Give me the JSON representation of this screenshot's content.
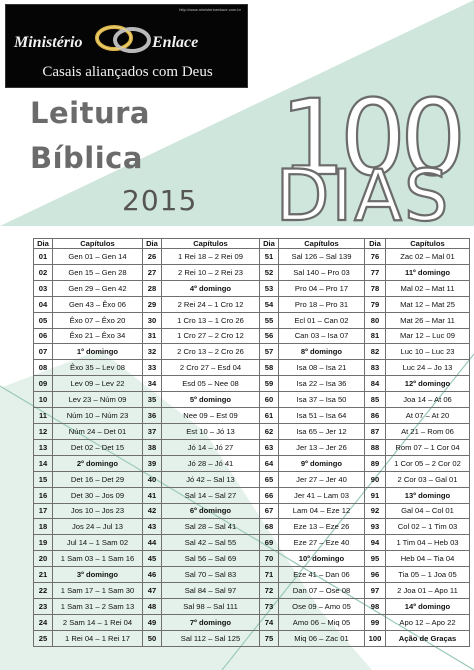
{
  "logo": {
    "url": "http://www.ministerioenlace.com.br",
    "word1": "Ministério",
    "word2": "Enlace",
    "subtitle": "Casais aliançados com Deus"
  },
  "header": {
    "line1": "Leitura",
    "line2": "Bíblica",
    "year": "2015",
    "big_number": "100",
    "big_word": "DIAS"
  },
  "colors": {
    "teal": "#cfe6dc",
    "teal_line": "#7fbfa7",
    "title_gray": "#6b6b6b"
  },
  "table": {
    "headers": [
      "Dia",
      "Capítulos",
      "Dia",
      "Capítulos",
      "Dia",
      "Capítulos",
      "Dia",
      "Capítulos"
    ],
    "rows": [
      [
        [
          "01",
          "Gen 01 – Gen 14"
        ],
        [
          "26",
          "1 Rei 18 – 2 Rei 09"
        ],
        [
          "51",
          "Sal 126 – Sal 139"
        ],
        [
          "76",
          "Zac 02 – Mal 01"
        ]
      ],
      [
        [
          "02",
          "Gen 15 – Gen 28"
        ],
        [
          "27",
          "2 Rei 10 – 2 Rei 23"
        ],
        [
          "52",
          "Sal 140 – Pro 03"
        ],
        [
          "77",
          "11º domingo"
        ]
      ],
      [
        [
          "03",
          "Gen 29 – Gen 42"
        ],
        [
          "28",
          "4º domingo"
        ],
        [
          "53",
          "Pro 04 – Pro 17"
        ],
        [
          "78",
          "Mal 02 – Mat 11"
        ]
      ],
      [
        [
          "04",
          "Gen 43 – Êxo 06"
        ],
        [
          "29",
          "2 Rei 24 – 1 Cro 12"
        ],
        [
          "54",
          "Pro 18 – Pro 31"
        ],
        [
          "79",
          "Mat 12 – Mat 25"
        ]
      ],
      [
        [
          "05",
          "Êxo 07 – Êxo 20"
        ],
        [
          "30",
          "1 Cro 13 – 1 Cro 26"
        ],
        [
          "55",
          "Ecl 01 – Can 02"
        ],
        [
          "80",
          "Mat 26 – Mar 11"
        ]
      ],
      [
        [
          "06",
          "Êxo 21 – Êxo 34"
        ],
        [
          "31",
          "1 Cro 27 – 2 Cro 12"
        ],
        [
          "56",
          "Can 03 – Isa 07"
        ],
        [
          "81",
          "Mar 12 – Luc 09"
        ]
      ],
      [
        [
          "07",
          "1º domingo"
        ],
        [
          "32",
          "2 Cro 13 – 2 Cro 26"
        ],
        [
          "57",
          "8º domingo"
        ],
        [
          "82",
          "Luc 10 – Luc 23"
        ]
      ],
      [
        [
          "08",
          "Êxo 35 – Lev 08"
        ],
        [
          "33",
          "2 Cro 27 – Esd 04"
        ],
        [
          "58",
          "Isa 08 – Isa 21"
        ],
        [
          "83",
          "Luc 24 – Jo 13"
        ]
      ],
      [
        [
          "09",
          "Lev 09 – Lev 22"
        ],
        [
          "34",
          "Esd 05 – Nee 08"
        ],
        [
          "59",
          "Isa 22 – Isa 36"
        ],
        [
          "84",
          "12º domingo"
        ]
      ],
      [
        [
          "10",
          "Lev 23 – Núm 09"
        ],
        [
          "35",
          "5º domingo"
        ],
        [
          "60",
          "Isa 37 – Isa 50"
        ],
        [
          "85",
          "Joa 14 – At 06"
        ]
      ],
      [
        [
          "11",
          "Núm 10 – Núm 23"
        ],
        [
          "36",
          "Nee 09 – Est 09"
        ],
        [
          "61",
          "Isa 51 – Isa 64"
        ],
        [
          "86",
          "At 07 – At 20"
        ]
      ],
      [
        [
          "12",
          "Núm 24 – Det 01"
        ],
        [
          "37",
          "Est 10 – Jó 13"
        ],
        [
          "62",
          "Isa 65 – Jer 12"
        ],
        [
          "87",
          "At 21 – Rom 06"
        ]
      ],
      [
        [
          "13",
          "Det 02 – Det 15"
        ],
        [
          "38",
          "Jó 14 – Jó 27"
        ],
        [
          "63",
          "Jer 13 – Jer 26"
        ],
        [
          "88",
          "Rom 07 – 1 Cor 04"
        ]
      ],
      [
        [
          "14",
          "2º domingo"
        ],
        [
          "39",
          "Jó 28 – Jó 41"
        ],
        [
          "64",
          "9º domingo"
        ],
        [
          "89",
          "1 Cor 05 – 2 Cor 02"
        ]
      ],
      [
        [
          "15",
          "Det 16 – Det 29"
        ],
        [
          "40",
          "Jó 42 – Sal 13"
        ],
        [
          "65",
          "Jer 27 – Jer 40"
        ],
        [
          "90",
          "2 Cor 03 – Gal 01"
        ]
      ],
      [
        [
          "16",
          "Det 30 – Jos 09"
        ],
        [
          "41",
          "Sal 14 – Sal 27"
        ],
        [
          "66",
          "Jer 41 – Lam 03"
        ],
        [
          "91",
          "13º domingo"
        ]
      ],
      [
        [
          "17",
          "Jos 10 – Jos 23"
        ],
        [
          "42",
          "6º domingo"
        ],
        [
          "67",
          "Lam 04 – Eze 12"
        ],
        [
          "92",
          "Gal 04 – Col 01"
        ]
      ],
      [
        [
          "18",
          "Jos 24 – Jul 13"
        ],
        [
          "43",
          "Sal 28 – Sal 41"
        ],
        [
          "68",
          "Eze 13 – Eze 26"
        ],
        [
          "93",
          "Col 02 – 1 Tim 03"
        ]
      ],
      [
        [
          "19",
          "Jul 14 – 1 Sam 02"
        ],
        [
          "44",
          "Sal 42 – Sal 55"
        ],
        [
          "69",
          "Eze 27 – Eze 40"
        ],
        [
          "94",
          "1 Tim 04 – Heb 03"
        ]
      ],
      [
        [
          "20",
          "1 Sam 03 – 1 Sam 16"
        ],
        [
          "45",
          "Sal 56 – Sal 69"
        ],
        [
          "70",
          "10º domingo"
        ],
        [
          "95",
          "Heb 04 – Tia 04"
        ]
      ],
      [
        [
          "21",
          "3º domingo"
        ],
        [
          "46",
          "Sal 70 – Sal 83"
        ],
        [
          "71",
          "Eze 41 – Dan 06"
        ],
        [
          "96",
          "Tia 05 – 1 Joa 05"
        ]
      ],
      [
        [
          "22",
          "1 Sam 17 – 1 Sam 30"
        ],
        [
          "47",
          "Sal 84 – Sal 97"
        ],
        [
          "72",
          "Dan 07 – Ose 08"
        ],
        [
          "97",
          "2 Joa 01 – Apo 11"
        ]
      ],
      [
        [
          "23",
          "1 Sam 31 – 2 Sam 13"
        ],
        [
          "48",
          "Sal 98 – Sal 111"
        ],
        [
          "73",
          "Ose 09 – Amo 05"
        ],
        [
          "98",
          "14º domingo"
        ]
      ],
      [
        [
          "24",
          "2 Sam 14 – 1 Rei 04"
        ],
        [
          "49",
          "7º domingo"
        ],
        [
          "74",
          "Amo 06 – Miq 05"
        ],
        [
          "99",
          "Apo 12 – Apo 22"
        ]
      ],
      [
        [
          "25",
          "1 Rei 04 – 1 Rei 17"
        ],
        [
          "50",
          "Sal 112 – Sal 125"
        ],
        [
          "75",
          "Miq 06 – Zac 01"
        ],
        [
          "100",
          "Ação de Graças"
        ]
      ]
    ]
  }
}
